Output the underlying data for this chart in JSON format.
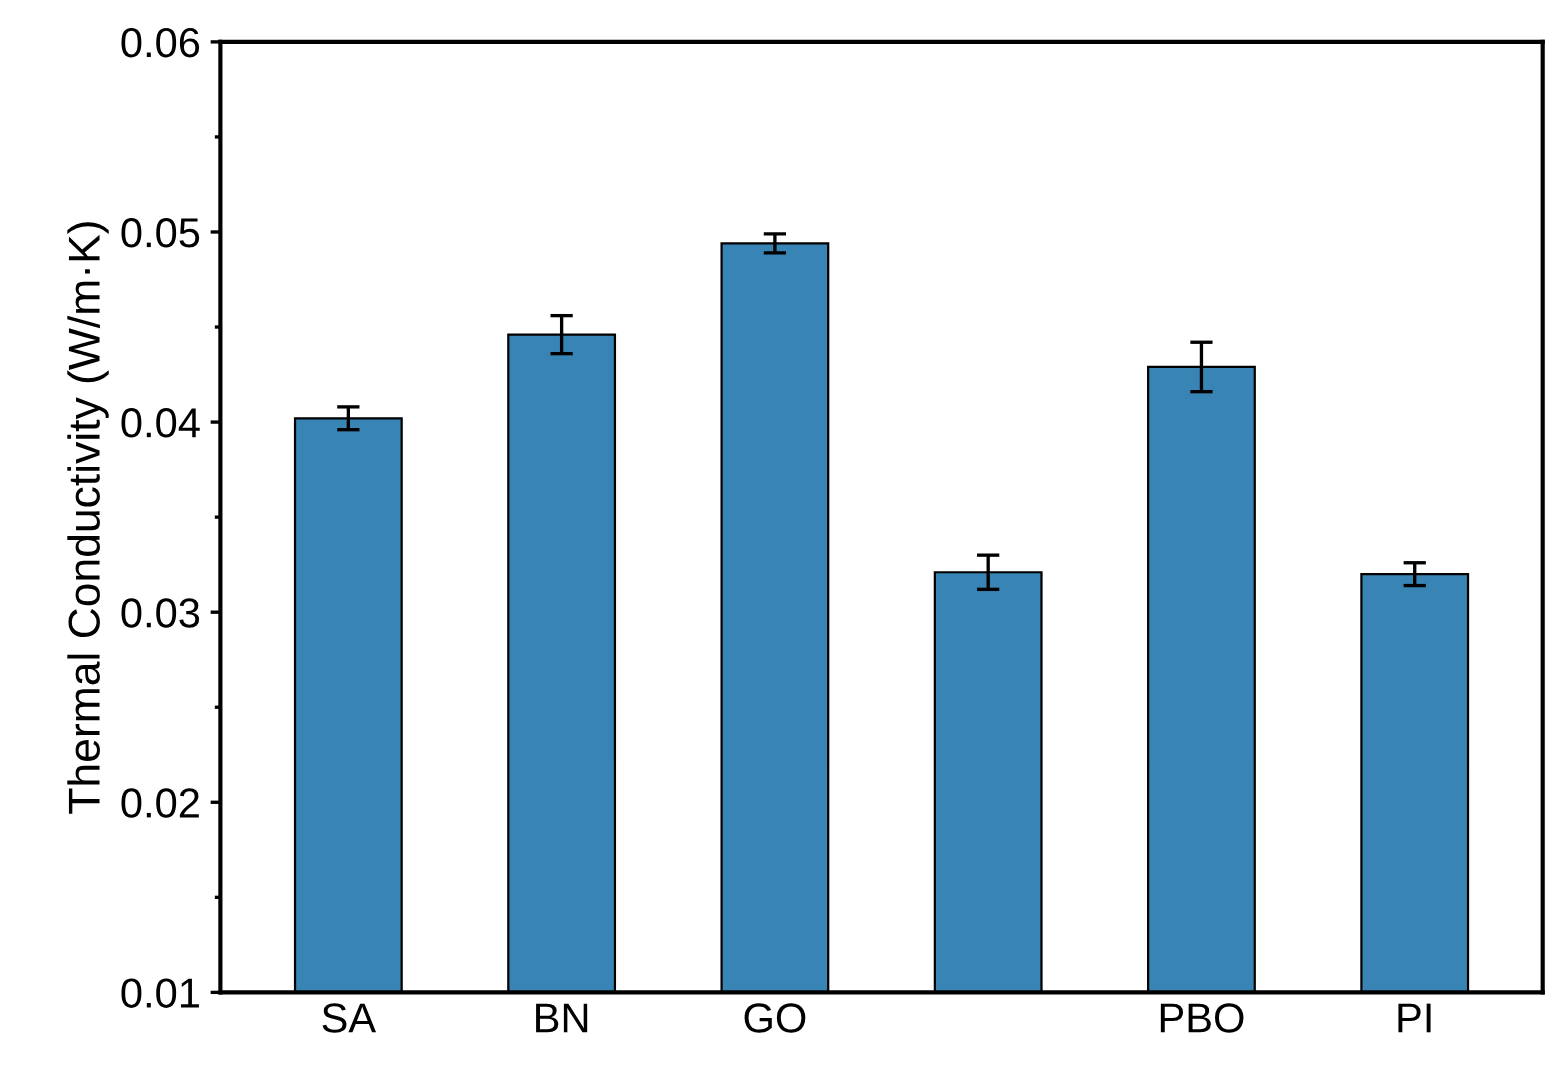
{
  "chart_data": {
    "type": "bar",
    "ylabel": "Thermal Conductivity (W/m·K)",
    "categories": [
      "SA",
      "BN",
      "GO",
      null,
      "PBO",
      "PI"
    ],
    "values": [
      0.0402,
      0.0446,
      0.0494,
      0.0321,
      0.0429,
      0.032
    ],
    "errors": [
      0.0006,
      0.001,
      0.0005,
      0.0009,
      0.0013,
      0.0006
    ],
    "color": "#3784b5",
    "ylim": [
      0.01,
      0.06
    ],
    "yticks": [
      0.01,
      0.02,
      0.03,
      0.04,
      0.05,
      0.06
    ],
    "grid": false
  }
}
